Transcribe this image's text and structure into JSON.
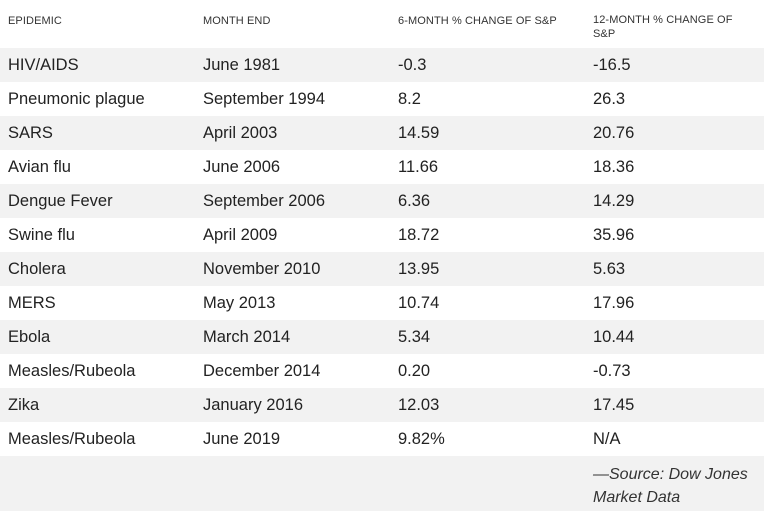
{
  "headers": {
    "epidemic": "EPIDEMIC",
    "month_end": "MONTH END",
    "six_month": "6-MONTH % CHANGE OF S&P",
    "twelve_month": "12-MONTH % CHANGE OF S&P"
  },
  "rows": [
    {
      "epidemic": "HIV/AIDS",
      "month_end": "June 1981",
      "six_month": "-0.3",
      "twelve_month": "-16.5"
    },
    {
      "epidemic": "Pneumonic plague",
      "month_end": "September 1994",
      "six_month": "8.2",
      "twelve_month": "26.3"
    },
    {
      "epidemic": "SARS",
      "month_end": "April 2003",
      "six_month": "14.59",
      "twelve_month": "20.76"
    },
    {
      "epidemic": "Avian flu",
      "month_end": "June 2006",
      "six_month": "11.66",
      "twelve_month": "18.36"
    },
    {
      "epidemic": "Dengue Fever",
      "month_end": "September 2006",
      "six_month": "6.36",
      "twelve_month": "14.29"
    },
    {
      "epidemic": "Swine flu",
      "month_end": "April 2009",
      "six_month": "18.72",
      "twelve_month": "35.96"
    },
    {
      "epidemic": "Cholera",
      "month_end": "November 2010",
      "six_month": "13.95",
      "twelve_month": "5.63"
    },
    {
      "epidemic": "MERS",
      "month_end": "May 2013",
      "six_month": "10.74",
      "twelve_month": "17.96"
    },
    {
      "epidemic": "Ebola",
      "month_end": "March 2014",
      "six_month": "5.34",
      "twelve_month": "10.44"
    },
    {
      "epidemic": "Measles/Rubeola",
      "month_end": "December 2014",
      "six_month": "0.20",
      "twelve_month": "-0.73"
    },
    {
      "epidemic": "Zika",
      "month_end": "January 2016",
      "six_month": "12.03",
      "twelve_month": "17.45"
    },
    {
      "epidemic": "Measles/Rubeola",
      "month_end": "June 2019",
      "six_month": "9.82%",
      "twelve_month": "N/A"
    }
  ],
  "source": "—Source: Dow Jones Market Data",
  "colors": {
    "stripe": "#f2f2f2",
    "text": "#222222"
  }
}
